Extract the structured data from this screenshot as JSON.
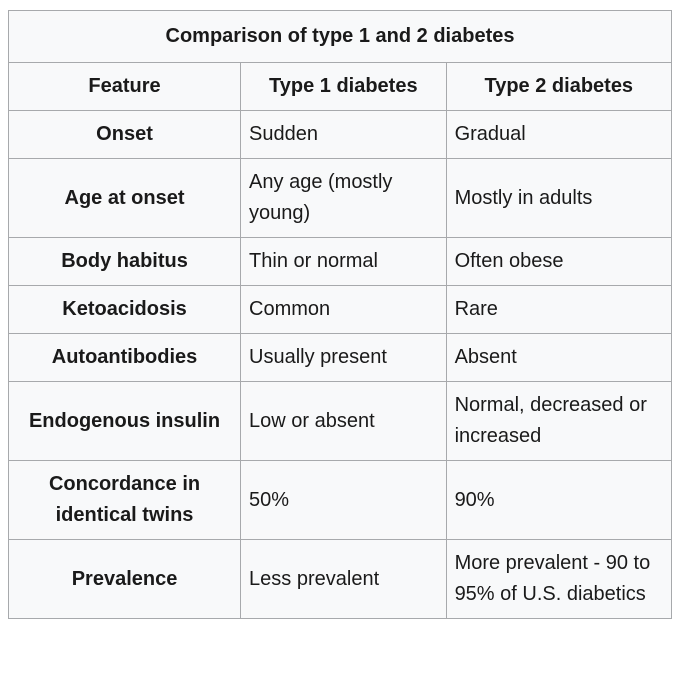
{
  "table": {
    "title": "Comparison of type 1 and 2 diabetes",
    "columns": [
      "Feature",
      "Type 1 diabetes",
      "Type 2 diabetes"
    ],
    "column_widths_pct": [
      35,
      31,
      34
    ],
    "rows": [
      {
        "feature": "Onset",
        "type1": "Sudden",
        "type2": "Gradual"
      },
      {
        "feature": "Age at onset",
        "type1": "Any age (mostly young)",
        "type2": "Mostly in adults"
      },
      {
        "feature": "Body habitus",
        "type1": "Thin or normal",
        "type2": "Often obese"
      },
      {
        "feature": "Ketoacidosis",
        "type1": "Common",
        "type2": "Rare"
      },
      {
        "feature": "Autoantibodies",
        "type1": "Usually present",
        "type2": "Absent"
      },
      {
        "feature": "Endogenous insulin",
        "type1": "Low or absent",
        "type2": "Normal, decreased or increased"
      },
      {
        "feature": "Concordance in identical twins",
        "type1": "50%",
        "type2": "90%"
      },
      {
        "feature": "Prevalence",
        "type1": "Less prevalent",
        "type2": "More prevalent - 90 to 95% of U.S. diabetics"
      }
    ],
    "colors": {
      "border": "#a7a9ac",
      "background": "#f8f9fa",
      "text": "#1a1a1a"
    },
    "fontsize_pt": 15
  }
}
